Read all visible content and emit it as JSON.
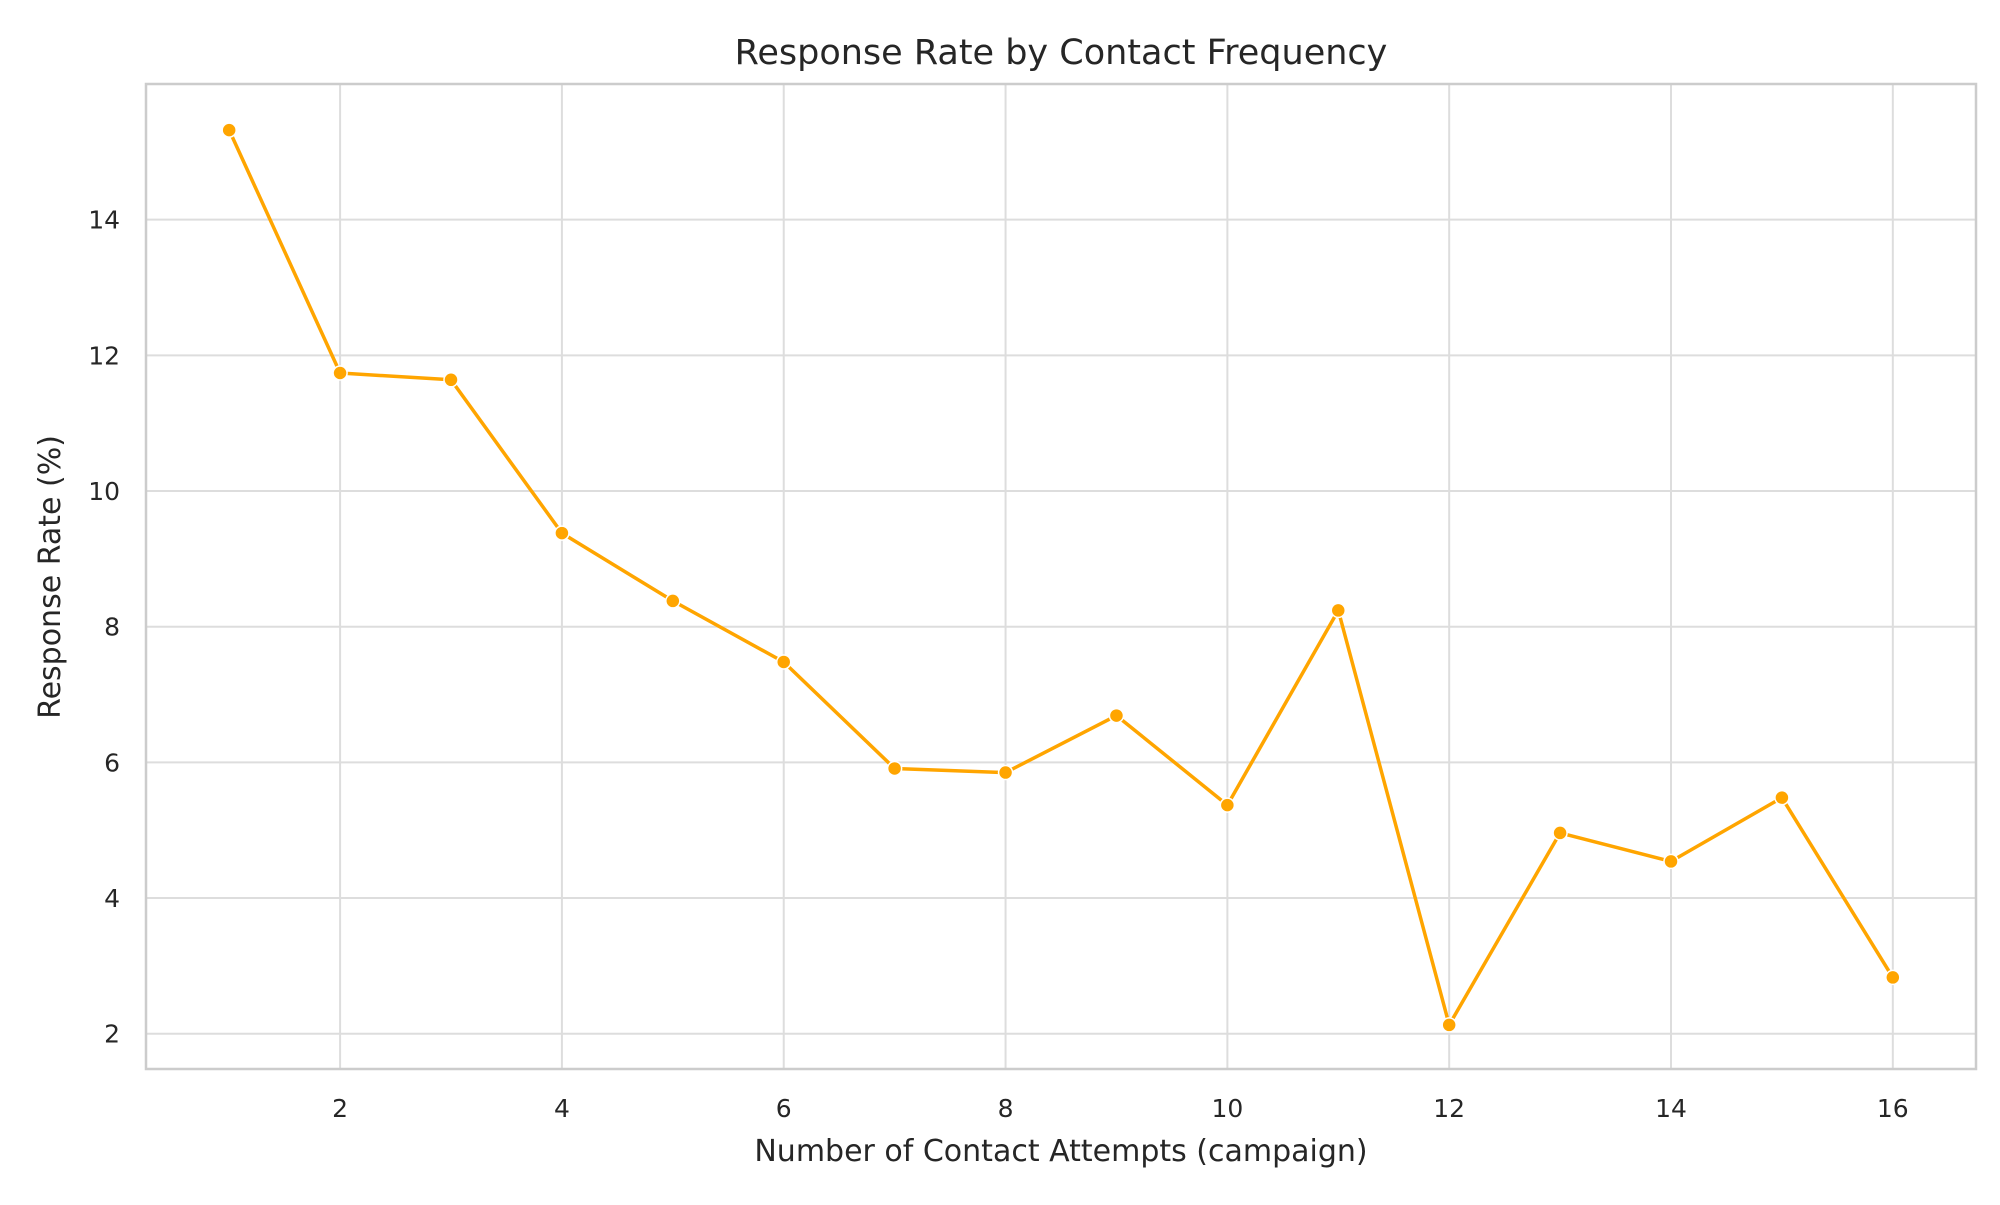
{
  "chart_data": {
    "type": "line",
    "title": "Response Rate by Contact Frequency",
    "xlabel": "Number of Contact Attempts (campaign)",
    "ylabel": "Response Rate (%)",
    "xlim": [
      0.25,
      16.75
    ],
    "ylim": [
      1.48,
      16.0
    ],
    "xticks": [
      2,
      4,
      6,
      8,
      10,
      12,
      14,
      16
    ],
    "yticks": [
      2,
      4,
      6,
      8,
      10,
      12,
      14
    ],
    "grid": true,
    "legend": "none",
    "series": [
      {
        "color": "#FFA500",
        "x": [
          1,
          2,
          3,
          4,
          5,
          6,
          7,
          8,
          9,
          10,
          11,
          12,
          13,
          14,
          15,
          16
        ],
        "y": [
          15.32,
          11.74,
          11.64,
          9.38,
          8.38,
          7.48,
          5.91,
          5.85,
          6.69,
          5.37,
          8.24,
          2.13,
          4.96,
          4.54,
          5.48,
          2.83
        ]
      }
    ]
  }
}
